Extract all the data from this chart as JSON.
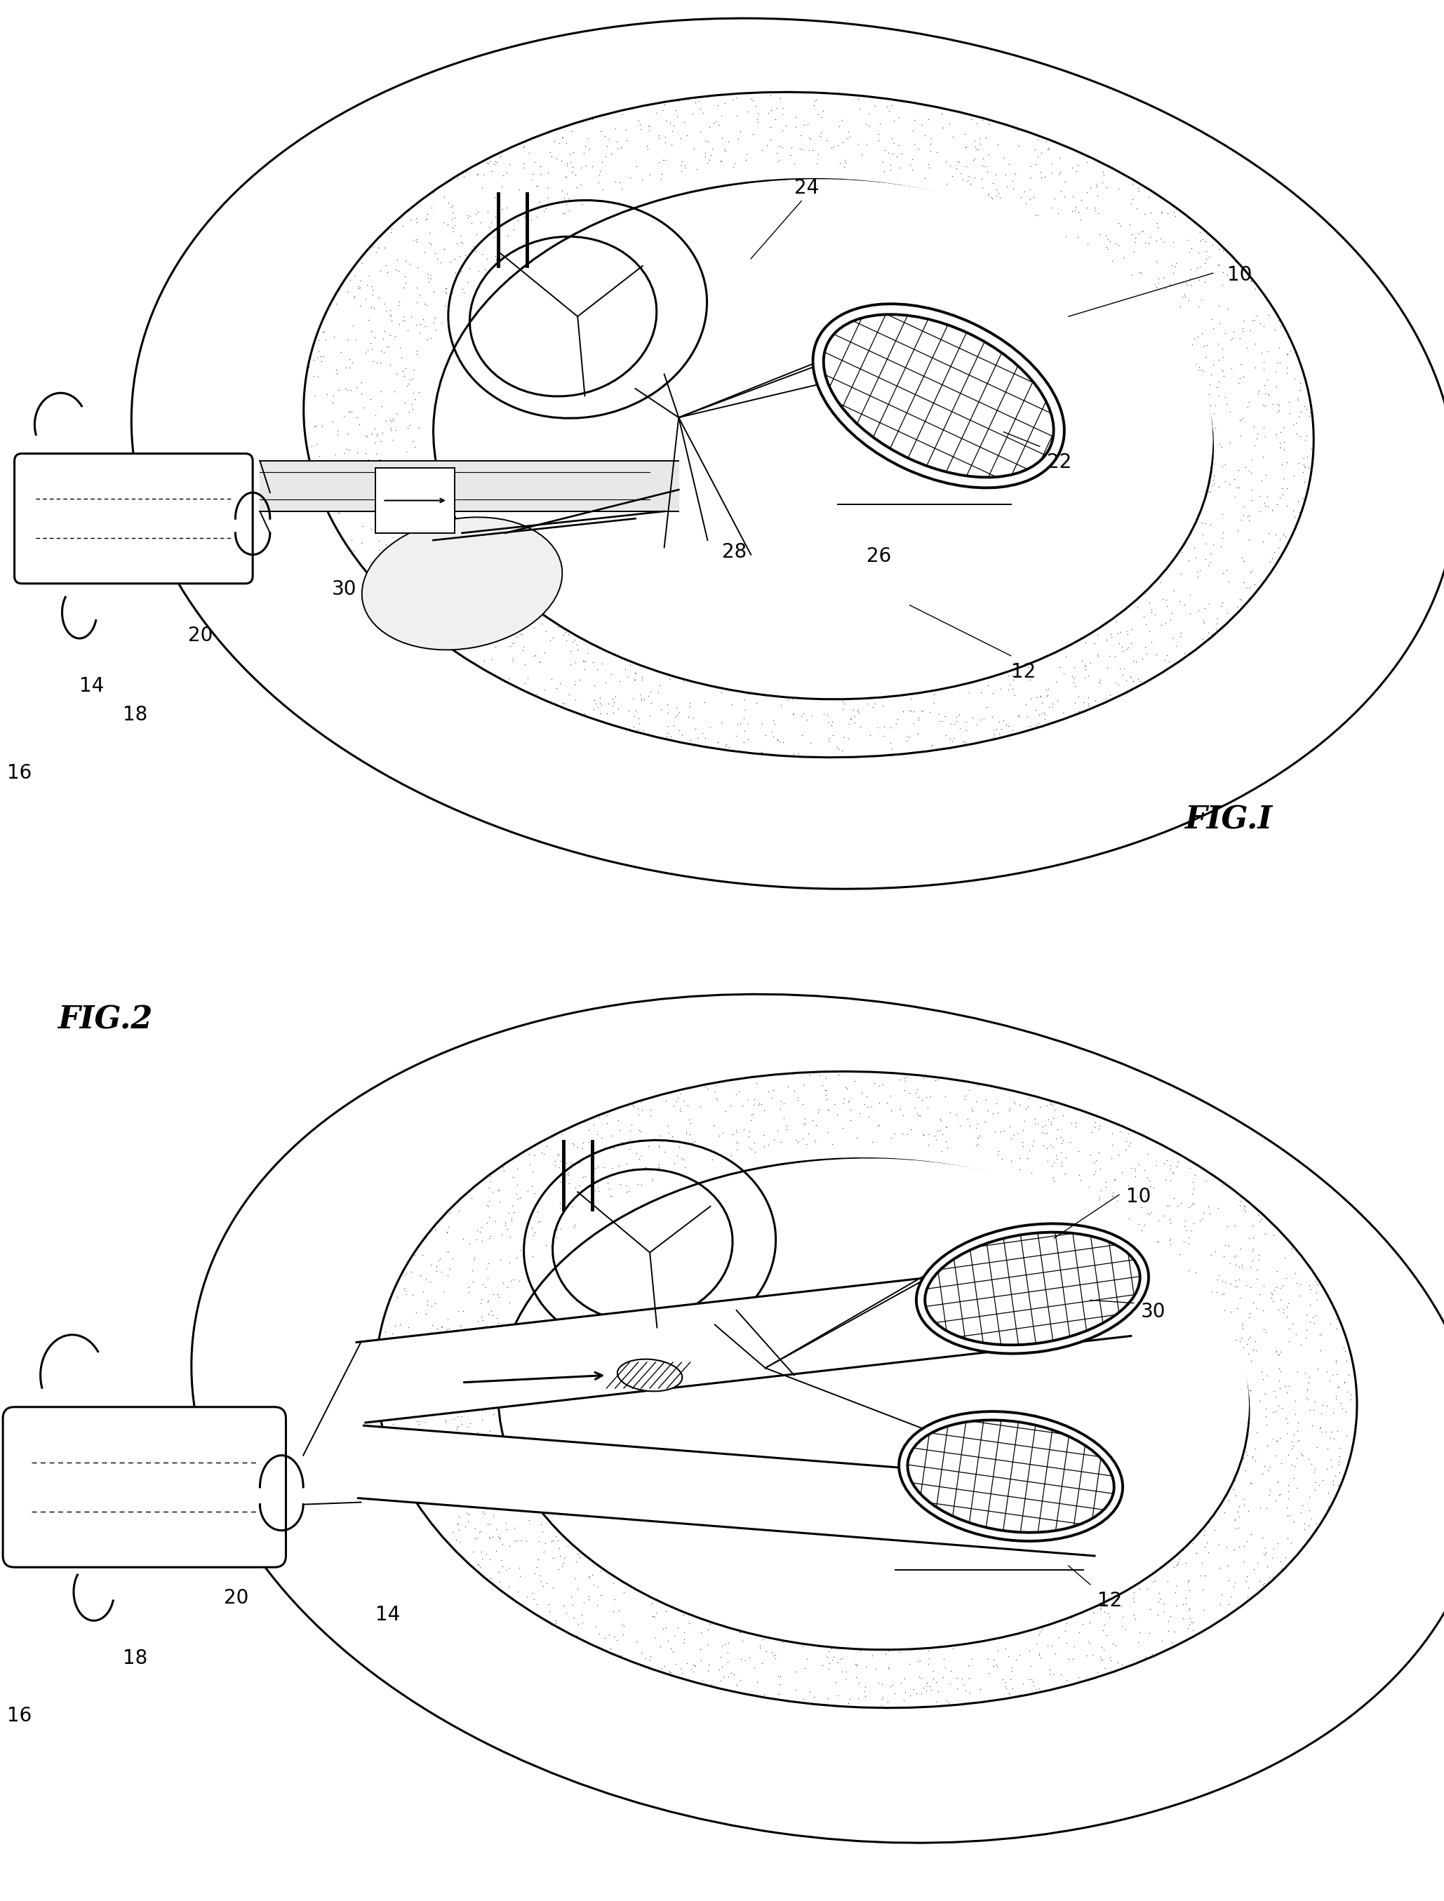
{
  "background_color": "#ffffff",
  "lw_main": 2.2,
  "lw_thick": 2.8,
  "lw_thin": 1.4,
  "fig1_label": "FIG.I",
  "fig2_label": "FIG.2",
  "stipple_color": "#555555",
  "stipple_size": 4,
  "stipple_density": 1800,
  "font_size_label": 20,
  "font_size_fig": 32
}
